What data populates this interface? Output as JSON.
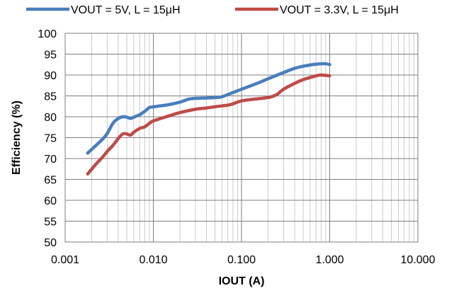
{
  "chart_data": {
    "type": "line",
    "title": "",
    "xlabel": "IOUT (A)",
    "ylabel": "Efficiency (%)",
    "x_scale": "log",
    "xlim": [
      0.001,
      10
    ],
    "ylim": [
      50,
      100
    ],
    "y_tick_step": 5,
    "grid": true,
    "legend_position": "top",
    "x_tick_labels": [
      "0.001",
      "0.010",
      "0.100",
      "1.000",
      "10.000"
    ],
    "y_tick_labels": [
      "50",
      "55",
      "60",
      "65",
      "70",
      "75",
      "80",
      "85",
      "90",
      "95",
      "100"
    ],
    "series": [
      {
        "name": "VOUT = 5V, L = 15μH",
        "color": "#4a7ebb",
        "x": [
          0.0018,
          0.0022,
          0.0027,
          0.003,
          0.0035,
          0.004,
          0.0045,
          0.005,
          0.0055,
          0.006,
          0.007,
          0.008,
          0.009,
          0.01,
          0.015,
          0.02,
          0.025,
          0.03,
          0.04,
          0.05,
          0.06,
          0.08,
          0.1,
          0.15,
          0.2,
          0.3,
          0.4,
          0.5,
          0.6,
          0.7,
          0.8,
          0.9,
          1.0
        ],
        "y": [
          71.3,
          73.0,
          74.8,
          76.0,
          78.5,
          79.6,
          80.0,
          79.9,
          79.6,
          79.9,
          80.5,
          81.3,
          82.2,
          82.4,
          82.9,
          83.5,
          84.2,
          84.4,
          84.5,
          84.6,
          84.8,
          85.8,
          86.6,
          88.0,
          89.1,
          90.6,
          91.6,
          92.1,
          92.4,
          92.6,
          92.7,
          92.7,
          92.5
        ]
      },
      {
        "name": "VOUT = 3.3V, L = 15μH",
        "color": "#be4b48",
        "x": [
          0.0018,
          0.0022,
          0.0027,
          0.003,
          0.0035,
          0.004,
          0.0045,
          0.005,
          0.0055,
          0.006,
          0.007,
          0.008,
          0.009,
          0.01,
          0.015,
          0.02,
          0.03,
          0.04,
          0.05,
          0.07,
          0.08,
          0.1,
          0.15,
          0.2,
          0.25,
          0.3,
          0.4,
          0.5,
          0.6,
          0.7,
          0.8,
          1.0
        ],
        "y": [
          66.3,
          68.5,
          70.5,
          71.7,
          73.2,
          74.8,
          75.9,
          75.9,
          75.6,
          76.3,
          77.2,
          77.6,
          78.4,
          79.0,
          80.2,
          81.0,
          81.8,
          82.1,
          82.4,
          82.8,
          83.1,
          83.8,
          84.3,
          84.6,
          85.3,
          86.6,
          88.0,
          88.9,
          89.4,
          89.8,
          90.0,
          89.8
        ]
      }
    ]
  }
}
